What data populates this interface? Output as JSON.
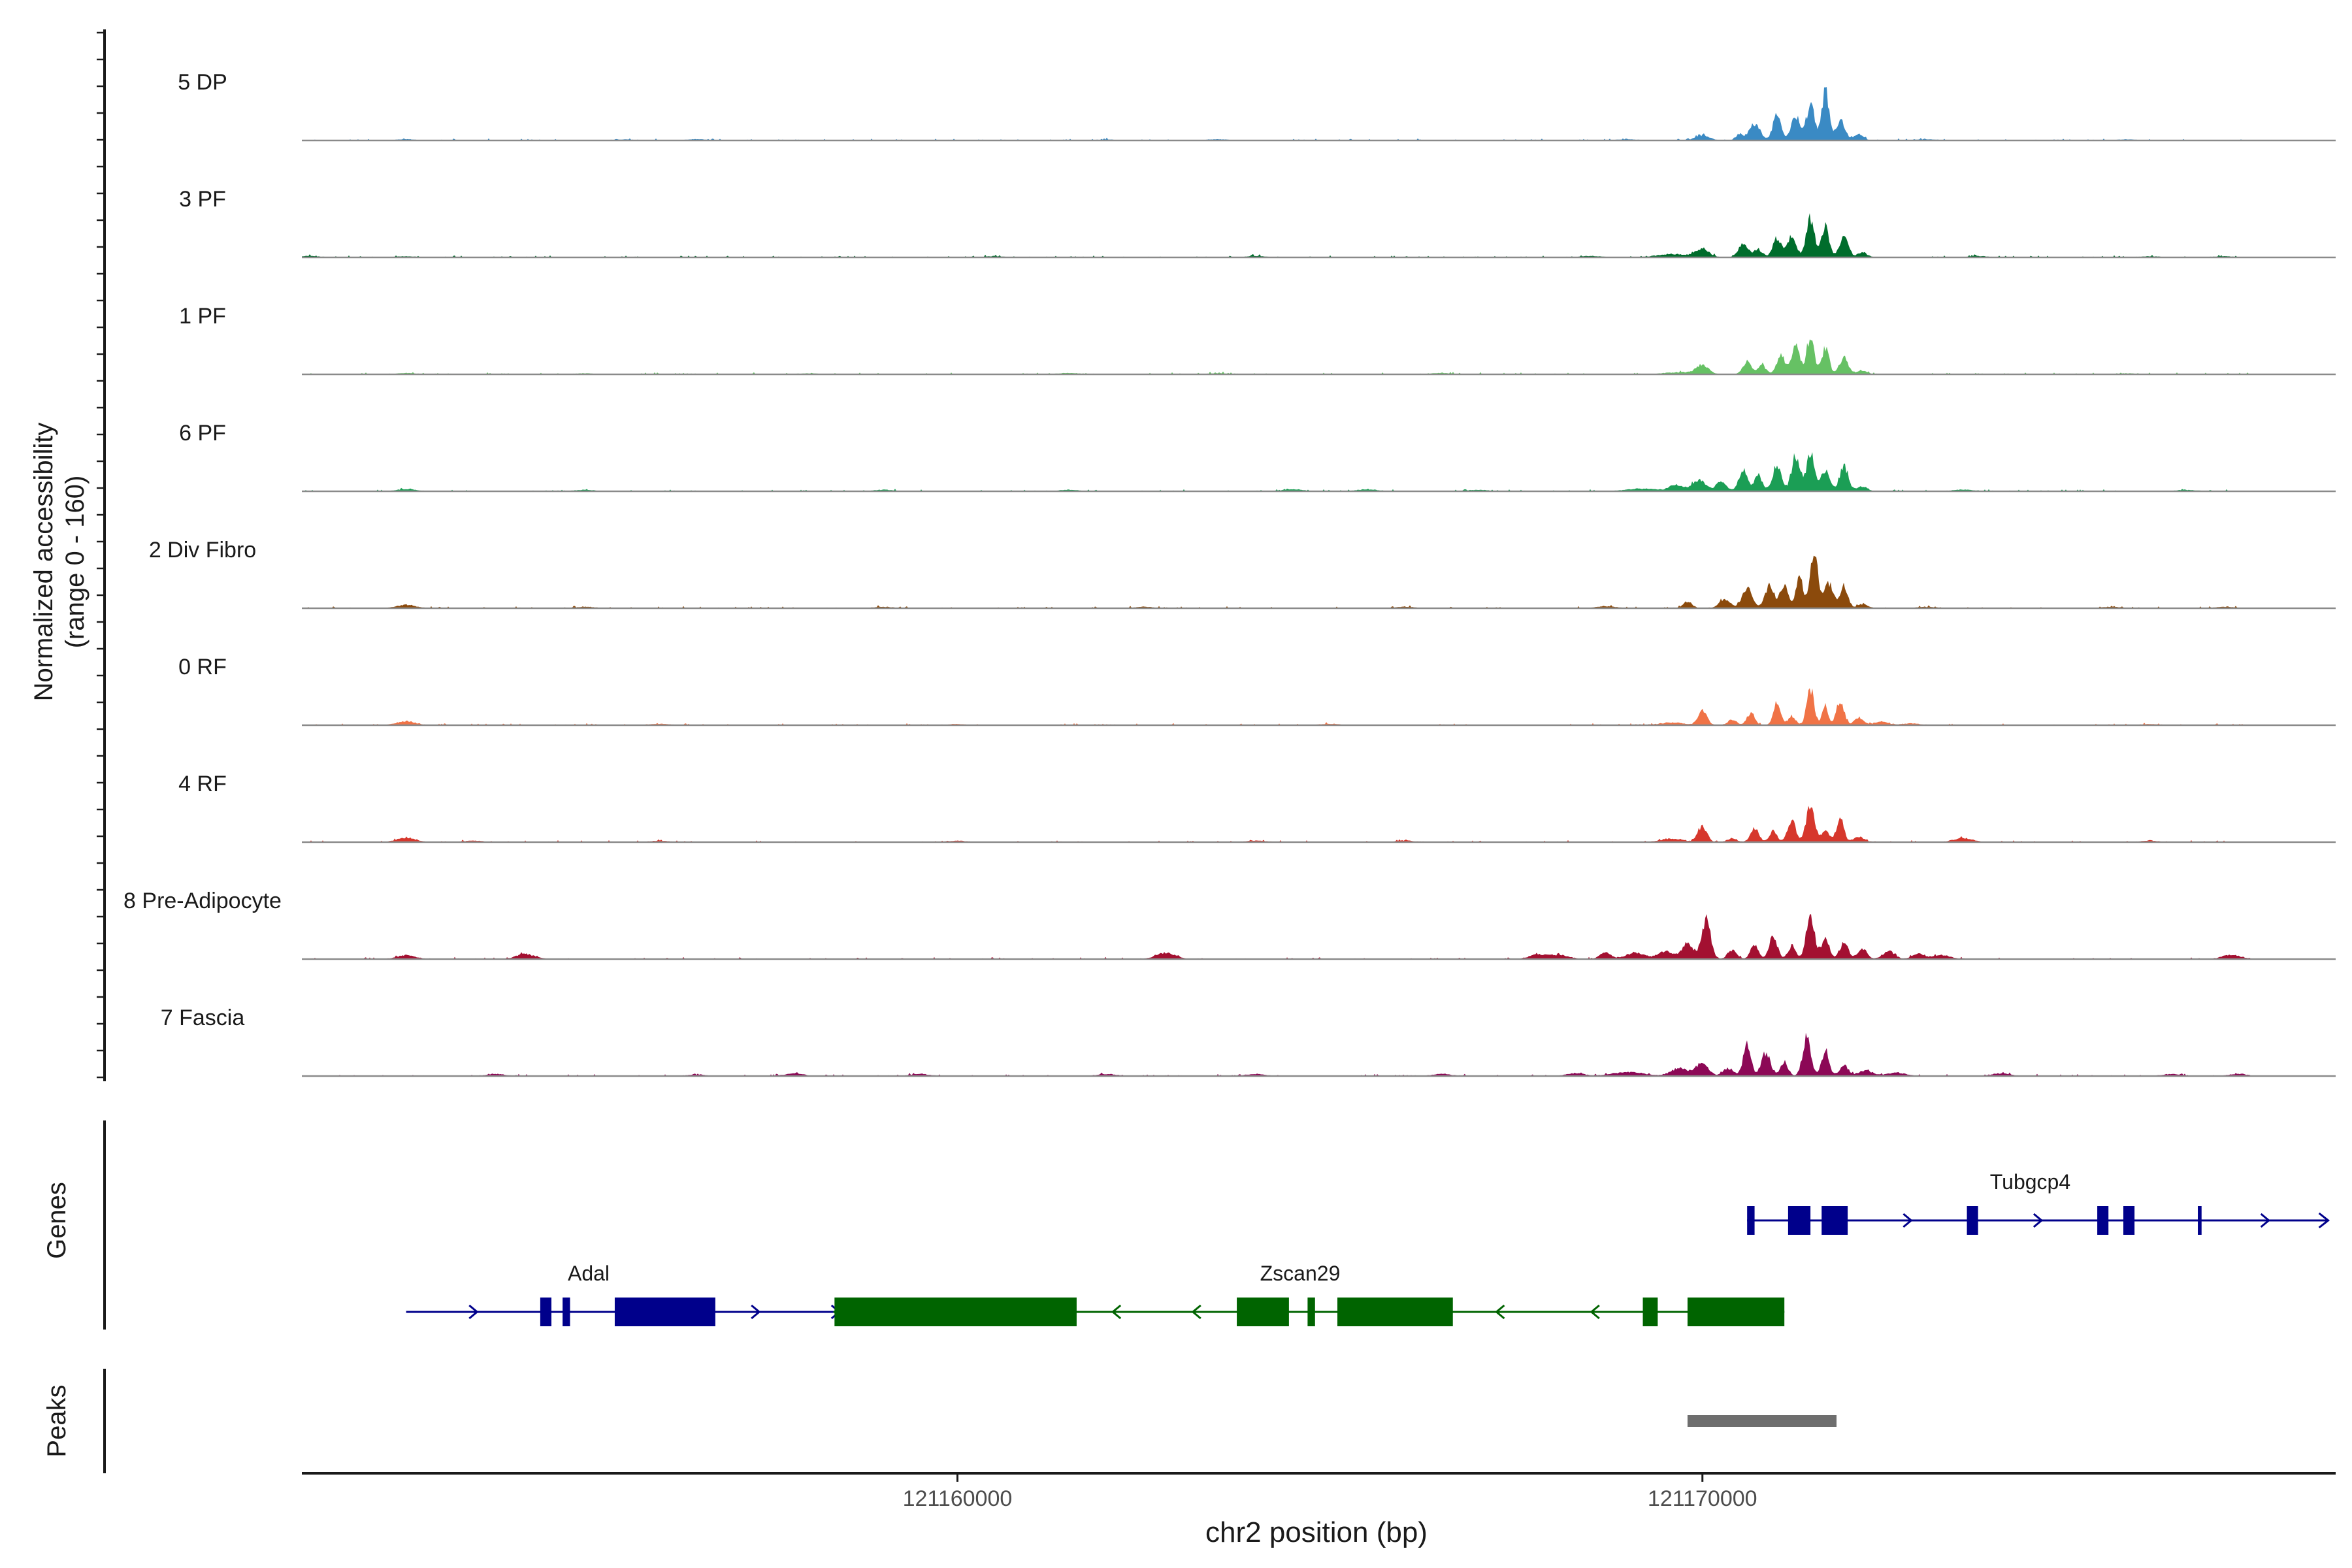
{
  "chart_data": {
    "type": "area",
    "title": "",
    "y_axis_label": "Normalized accessibility",
    "y_axis_sublabel": "(range 0 - 160)",
    "y_range": [
      0,
      160
    ],
    "x_axis_label": "chr2 position (bp)",
    "x_range": [
      121151200,
      121178500
    ],
    "x_ticks": [
      {
        "value": 121160000,
        "label": "121160000"
      },
      {
        "value": 121170000,
        "label": "121170000"
      }
    ],
    "tracks": [
      {
        "name": "5 DP",
        "color": "#3a8ac4",
        "peaks": [
          [
            121170000,
            8,
            90
          ],
          [
            121170500,
            10,
            50
          ],
          [
            121170700,
            26,
            70
          ],
          [
            121171000,
            38,
            55
          ],
          [
            121171250,
            38,
            60
          ],
          [
            121171450,
            55,
            55
          ],
          [
            121171650,
            78,
            45
          ],
          [
            121171850,
            28,
            60
          ],
          [
            121172100,
            9,
            60
          ]
        ],
        "background": [
          [
            121152600,
            1.6
          ],
          [
            121155500,
            1.3
          ],
          [
            121156500,
            1.6
          ],
          [
            121162000,
            1.2
          ],
          [
            121163500,
            1.5
          ],
          [
            121169000,
            1.5
          ],
          [
            121171800,
            2
          ],
          [
            121173000,
            1.5
          ],
          [
            121175700,
            1.3
          ]
        ]
      },
      {
        "name": "3 PF",
        "color": "#006d2c",
        "peaks": [
          [
            121169600,
            5,
            200
          ],
          [
            121170000,
            12,
            90
          ],
          [
            121170550,
            22,
            60
          ],
          [
            121170750,
            12,
            60
          ],
          [
            121171000,
            30,
            55
          ],
          [
            121171200,
            32,
            60
          ],
          [
            121171450,
            62,
            55
          ],
          [
            121171650,
            48,
            50
          ],
          [
            121171900,
            30,
            60
          ],
          [
            121172150,
            8,
            60
          ]
        ],
        "background": [
          [
            121151300,
            2
          ],
          [
            121152600,
            1.5
          ],
          [
            121160500,
            1.5
          ],
          [
            121164000,
            2
          ],
          [
            121168500,
            2
          ],
          [
            121173700,
            1.8
          ],
          [
            121176000,
            1.5
          ],
          [
            121177000,
            1.5
          ]
        ]
      },
      {
        "name": "1 PF",
        "color": "#66c164",
        "peaks": [
          [
            121169700,
            3,
            200
          ],
          [
            121170000,
            14,
            80
          ],
          [
            121170600,
            18,
            60
          ],
          [
            121170800,
            14,
            50
          ],
          [
            121171050,
            30,
            55
          ],
          [
            121171250,
            45,
            55
          ],
          [
            121171450,
            58,
            50
          ],
          [
            121171650,
            40,
            50
          ],
          [
            121171900,
            25,
            60
          ],
          [
            121172150,
            6,
            60
          ]
        ],
        "background": [
          [
            121152600,
            1.8
          ],
          [
            121155000,
            1.3
          ],
          [
            121158000,
            1.3
          ],
          [
            121161500,
            1.8
          ],
          [
            121163500,
            1.5
          ],
          [
            121166500,
            1.8
          ],
          [
            121175700,
            1.3
          ],
          [
            121177500,
            1.3
          ]
        ]
      },
      {
        "name": "6 PF",
        "color": "#1b9e55",
        "peaks": [
          [
            121169200,
            4,
            200
          ],
          [
            121169650,
            10,
            90
          ],
          [
            121169950,
            18,
            90
          ],
          [
            121170250,
            14,
            70
          ],
          [
            121170550,
            32,
            60
          ],
          [
            121170750,
            26,
            50
          ],
          [
            121171000,
            40,
            60
          ],
          [
            121171250,
            55,
            55
          ],
          [
            121171450,
            60,
            55
          ],
          [
            121171650,
            35,
            55
          ],
          [
            121171900,
            38,
            60
          ],
          [
            121172150,
            8,
            60
          ]
        ],
        "background": [
          [
            121152600,
            3
          ],
          [
            121155000,
            2
          ],
          [
            121159000,
            2
          ],
          [
            121161500,
            2
          ],
          [
            121164500,
            3
          ],
          [
            121165500,
            3
          ],
          [
            121167000,
            2
          ],
          [
            121173500,
            2.5
          ],
          [
            121176500,
            2
          ],
          [
            121177800,
            1.5
          ]
        ]
      },
      {
        "name": "2 Div Fibro",
        "color": "#8b4a0c",
        "peaks": [
          [
            121169800,
            10,
            60
          ],
          [
            121170300,
            14,
            70
          ],
          [
            121170600,
            30,
            70
          ],
          [
            121170900,
            36,
            60
          ],
          [
            121171100,
            38,
            55
          ],
          [
            121171300,
            52,
            45
          ],
          [
            121171500,
            82,
            55
          ],
          [
            121171700,
            38,
            60
          ],
          [
            121171900,
            34,
            50
          ],
          [
            121172150,
            6,
            70
          ]
        ],
        "background": [
          [
            121152600,
            5
          ],
          [
            121155000,
            2
          ],
          [
            121159000,
            2
          ],
          [
            121162500,
            2
          ],
          [
            121166000,
            2
          ],
          [
            121168700,
            3
          ],
          [
            121173000,
            2
          ],
          [
            121175500,
            2
          ],
          [
            121177000,
            2
          ]
        ]
      },
      {
        "name": "0 RF",
        "color": "#f07346",
        "peaks": [
          [
            121169600,
            4,
            150
          ],
          [
            121170000,
            22,
            60
          ],
          [
            121170400,
            8,
            60
          ],
          [
            121170650,
            20,
            50
          ],
          [
            121171000,
            32,
            50
          ],
          [
            121171200,
            14,
            50
          ],
          [
            121171450,
            55,
            50
          ],
          [
            121171650,
            30,
            40
          ],
          [
            121171850,
            40,
            50
          ],
          [
            121172100,
            12,
            60
          ],
          [
            121172400,
            5,
            100
          ]
        ],
        "background": [
          [
            121152600,
            6
          ],
          [
            121156000,
            2
          ],
          [
            121160000,
            1.5
          ],
          [
            121165000,
            1.8
          ],
          [
            121172800,
            2.5
          ],
          [
            121176000,
            1.5
          ]
        ]
      },
      {
        "name": "4 RF",
        "color": "#d6372c",
        "peaks": [
          [
            121169600,
            5,
            150
          ],
          [
            121170000,
            24,
            60
          ],
          [
            121170400,
            6,
            60
          ],
          [
            121170700,
            22,
            55
          ],
          [
            121170950,
            18,
            50
          ],
          [
            121171200,
            34,
            55
          ],
          [
            121171450,
            58,
            55
          ],
          [
            121171650,
            20,
            50
          ],
          [
            121171850,
            34,
            50
          ],
          [
            121172100,
            8,
            70
          ]
        ],
        "background": [
          [
            121152600,
            7
          ],
          [
            121153500,
            2
          ],
          [
            121156000,
            2
          ],
          [
            121160000,
            2
          ],
          [
            121164000,
            2
          ],
          [
            121166000,
            2
          ],
          [
            121173500,
            6
          ],
          [
            121176000,
            2
          ]
        ]
      },
      {
        "name": "8 Pre-Adipocyte",
        "color": "#a31031",
        "peaks": [
          [
            121168700,
            10,
            70
          ],
          [
            121169100,
            10,
            120
          ],
          [
            121169500,
            12,
            100
          ],
          [
            121169800,
            24,
            80
          ],
          [
            121170050,
            60,
            60
          ],
          [
            121170400,
            14,
            60
          ],
          [
            121170700,
            24,
            50
          ],
          [
            121170950,
            34,
            55
          ],
          [
            121171200,
            20,
            50
          ],
          [
            121171450,
            72,
            55
          ],
          [
            121171650,
            34,
            50
          ],
          [
            121171900,
            24,
            60
          ],
          [
            121172150,
            16,
            60
          ],
          [
            121172500,
            12,
            80
          ],
          [
            121172900,
            8,
            80
          ]
        ],
        "background": [
          [
            121152600,
            6
          ],
          [
            121154200,
            8
          ],
          [
            121162800,
            10
          ],
          [
            121167800,
            7
          ],
          [
            121168100,
            6
          ],
          [
            121173200,
            6
          ],
          [
            121177100,
            6
          ],
          [
            121177600,
            6
          ]
        ]
      },
      {
        "name": "7 Fascia",
        "color": "#8c0856",
        "peaks": [
          [
            121169000,
            6,
            200
          ],
          [
            121169700,
            12,
            120
          ],
          [
            121170000,
            18,
            80
          ],
          [
            121170350,
            12,
            70
          ],
          [
            121170600,
            50,
            50
          ],
          [
            121170850,
            36,
            60
          ],
          [
            121171100,
            22,
            50
          ],
          [
            121171400,
            60,
            55
          ],
          [
            121171650,
            40,
            50
          ],
          [
            121171900,
            16,
            60
          ],
          [
            121172200,
            8,
            90
          ],
          [
            121172600,
            5,
            120
          ]
        ],
        "background": [
          [
            121153800,
            3
          ],
          [
            121156500,
            2
          ],
          [
            121157800,
            4
          ],
          [
            121159500,
            3
          ],
          [
            121162000,
            3
          ],
          [
            121164000,
            3
          ],
          [
            121166500,
            3
          ],
          [
            121168300,
            4
          ],
          [
            121174000,
            4
          ],
          [
            121176300,
            3
          ],
          [
            121177200,
            3
          ]
        ]
      }
    ],
    "genes_label": "Genes",
    "genes": [
      {
        "name": "Tubgcp4",
        "strand": "+",
        "color": "#00008b",
        "row": 0,
        "start": 121170600,
        "end": 121178400,
        "exons": [
          [
            121170600,
            121170700
          ],
          [
            121171150,
            121171450
          ],
          [
            121171600,
            121171950
          ],
          [
            121173550,
            121173700
          ],
          [
            121175300,
            121175450
          ],
          [
            121175650,
            121175800
          ],
          [
            121176650,
            121176700
          ]
        ],
        "label_at": 121174400
      },
      {
        "name": "Adal",
        "strand": "+",
        "color": "#00008b",
        "row": 1,
        "start": 121152600,
        "end": 121158900,
        "exons": [
          [
            121154400,
            121154550
          ],
          [
            121154700,
            121154800
          ],
          [
            121155400,
            121156750
          ]
        ],
        "label_at": 121155050
      },
      {
        "name": "Zscan29",
        "strand": "-",
        "color": "#006400",
        "row": 1,
        "start": 121158350,
        "end": 121171100,
        "exons": [
          [
            121158350,
            121161600
          ],
          [
            121163750,
            121164450
          ],
          [
            121164700,
            121164800
          ],
          [
            121165100,
            121166650
          ],
          [
            121169200,
            121169400
          ],
          [
            121169800,
            121171100
          ]
        ],
        "label_at": 121164600
      }
    ],
    "peaks_label": "Peaks",
    "peak_regions": [
      {
        "start": 121169800,
        "end": 121171800,
        "color": "#6e6e6e"
      }
    ]
  }
}
